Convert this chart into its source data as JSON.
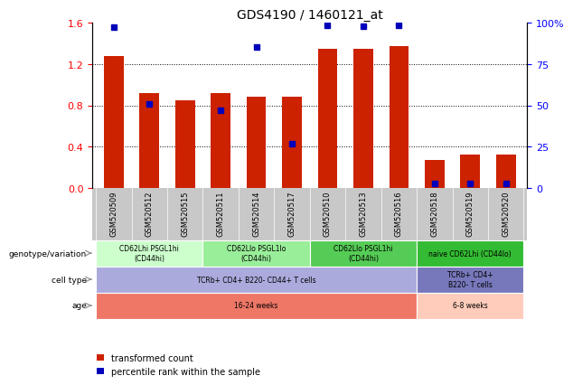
{
  "title": "GDS4190 / 1460121_at",
  "samples": [
    "GSM520509",
    "GSM520512",
    "GSM520515",
    "GSM520511",
    "GSM520514",
    "GSM520517",
    "GSM520510",
    "GSM520513",
    "GSM520516",
    "GSM520518",
    "GSM520519",
    "GSM520520"
  ],
  "bar_heights": [
    1.28,
    0.92,
    0.85,
    0.92,
    0.88,
    0.88,
    1.35,
    1.35,
    1.38,
    0.27,
    0.32,
    0.32
  ],
  "dot_values": [
    1.56,
    0.81,
    null,
    0.75,
    1.37,
    0.43,
    1.58,
    1.57,
    1.58,
    0.04,
    0.04,
    0.04
  ],
  "ylim_left": [
    0,
    1.6
  ],
  "ylim_right": [
    0,
    100
  ],
  "yticks_left": [
    0,
    0.4,
    0.8,
    1.2,
    1.6
  ],
  "yticks_right": [
    0,
    25,
    50,
    75,
    100
  ],
  "bar_color": "#cc2200",
  "dot_color": "#0000bb",
  "annotation_rows": [
    {
      "label": "genotype/variation",
      "groups": [
        {
          "text": "CD62Lhi PSGL1hi\n(CD44hi)",
          "span": [
            0,
            3
          ],
          "color": "#ccffcc"
        },
        {
          "text": "CD62Llo PSGL1lo\n(CD44hi)",
          "span": [
            3,
            6
          ],
          "color": "#99ee99"
        },
        {
          "text": "CD62Llo PSGL1hi\n(CD44hi)",
          "span": [
            6,
            9
          ],
          "color": "#55cc55"
        },
        {
          "text": "naive CD62Lhi (CD44lo)",
          "span": [
            9,
            12
          ],
          "color": "#33bb33"
        }
      ]
    },
    {
      "label": "cell type",
      "groups": [
        {
          "text": "TCRb+ CD4+ B220- CD44+ T cells",
          "span": [
            0,
            9
          ],
          "color": "#aaaadd"
        },
        {
          "text": "TCRb+ CD4+\nB220- T cells",
          "span": [
            9,
            12
          ],
          "color": "#7777bb"
        }
      ]
    },
    {
      "label": "age",
      "groups": [
        {
          "text": "16-24 weeks",
          "span": [
            0,
            9
          ],
          "color": "#ee7766"
        },
        {
          "text": "6-8 weeks",
          "span": [
            9,
            12
          ],
          "color": "#ffccbb"
        }
      ]
    }
  ],
  "legend_items": [
    {
      "color": "#cc2200",
      "label": "transformed count"
    },
    {
      "color": "#0000bb",
      "label": "percentile rank within the sample"
    }
  ],
  "tick_bg_color": "#c8c8c8",
  "left_label_color": "#000000",
  "arrow_color": "#888888"
}
